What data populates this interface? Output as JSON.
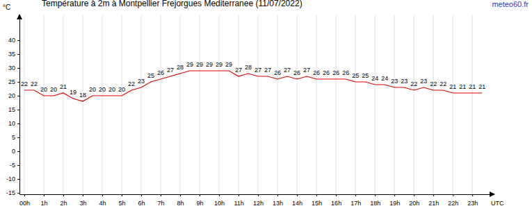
{
  "chart_data": {
    "type": "line",
    "title": "Température à 2m à Montpellier Frejorgues Mediterranee (11/07/2022)",
    "annotations": [
      "meteo60.fr"
    ],
    "y_label": "°C",
    "x_label": "UTC",
    "x": [
      0,
      0.5,
      1,
      1.5,
      2,
      2.5,
      3,
      3.5,
      4,
      4.5,
      5,
      5.5,
      6,
      6.5,
      7,
      7.5,
      8,
      8.5,
      9,
      9.5,
      10,
      10.5,
      11,
      11.5,
      12,
      12.5,
      13,
      13.5,
      14,
      14.5,
      15,
      15.5,
      16,
      16.5,
      17,
      17.5,
      18,
      18.5,
      19,
      19.5,
      20,
      20.5,
      21,
      21.5,
      22,
      22.5,
      23,
      23.5
    ],
    "values": [
      22,
      22,
      20,
      20,
      21,
      19,
      18,
      20,
      20,
      20,
      20,
      22,
      23,
      25,
      26,
      27,
      28,
      29,
      29,
      29,
      29,
      29,
      27,
      28,
      27,
      27,
      26,
      27,
      26,
      27,
      26,
      26,
      26,
      26,
      25,
      25,
      24,
      24,
      23,
      23,
      22,
      23,
      22,
      22,
      21,
      21,
      21,
      21
    ],
    "color": "#dd0000",
    "data_labels": true,
    "grid": true,
    "xlim": [
      -0.25,
      24.1
    ],
    "xticks": [
      {
        "value": 0,
        "label": "00h"
      },
      {
        "value": 1,
        "label": "1h"
      },
      {
        "value": 2,
        "label": "2h"
      },
      {
        "value": 3,
        "label": "3h"
      },
      {
        "value": 4,
        "label": "4h"
      },
      {
        "value": 5,
        "label": "5h"
      },
      {
        "value": 6,
        "label": "6h"
      },
      {
        "value": 7,
        "label": "7h"
      },
      {
        "value": 8,
        "label": "8h"
      },
      {
        "value": 9,
        "label": "9h"
      },
      {
        "value": 10,
        "label": "10h"
      },
      {
        "value": 11,
        "label": "11h"
      },
      {
        "value": 12,
        "label": "12h"
      },
      {
        "value": 13,
        "label": "13h"
      },
      {
        "value": 14,
        "label": "14h"
      },
      {
        "value": 15,
        "label": "15h"
      },
      {
        "value": 16,
        "label": "16h"
      },
      {
        "value": 17,
        "label": "17h"
      },
      {
        "value": 18,
        "label": "18h"
      },
      {
        "value": 19,
        "label": "19h"
      },
      {
        "value": 20,
        "label": "20h"
      },
      {
        "value": 21,
        "label": "21h"
      },
      {
        "value": 22,
        "label": "22h"
      },
      {
        "value": 23,
        "label": "23h"
      }
    ],
    "ylim": [
      -15.5,
      49
    ],
    "yticks": [
      -15,
      -10,
      -5,
      0,
      5,
      10,
      15,
      20,
      25,
      30,
      35,
      40
    ]
  }
}
